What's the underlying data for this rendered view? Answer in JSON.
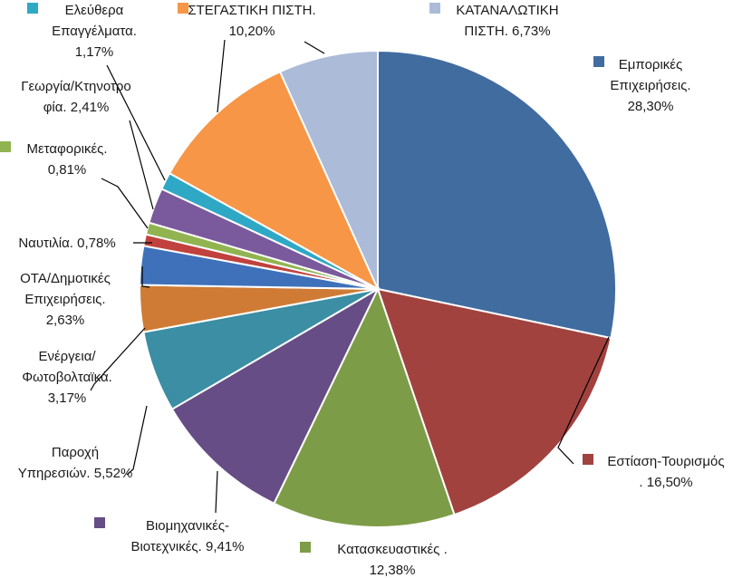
{
  "chart_data": {
    "type": "pie",
    "title": "",
    "start_angle_deg": 0,
    "direction": "clockwise",
    "slices": [
      {
        "label_lines": [
          "Εμπορικές",
          "Επιχειρήσεις.",
          "28,30%"
        ],
        "value": 28.3,
        "color": "#416c9f"
      },
      {
        "label_lines": [
          "Εστίαση-Τουρισμός",
          ". 16,50%"
        ],
        "value": 16.5,
        "color": "#a1423f"
      },
      {
        "label_lines": [
          "Κατασκευαστικές .",
          "12,38%"
        ],
        "value": 12.38,
        "color": "#7d9c47"
      },
      {
        "label_lines": [
          "Βιομηχανικές-",
          "Βιοτεχνικές. 9,41%"
        ],
        "value": 9.41,
        "color": "#664d85"
      },
      {
        "label_lines": [
          "Παροχή",
          "Υπηρεσιών. 5,52%"
        ],
        "value": 5.52,
        "color": "#3b8ea3"
      },
      {
        "label_lines": [
          "Ενέργεια/",
          "Φωτοβολταϊκά.",
          "3,17%"
        ],
        "value": 3.17,
        "color": "#cf7b35"
      },
      {
        "label_lines": [
          "ΟΤΑ/Δημοτικές",
          "Επιχειρήσεις.",
          "2,63%"
        ],
        "value": 2.63,
        "color": "#3f71bb"
      },
      {
        "label_lines": [
          "Ναυτιλία. 0,78%"
        ],
        "value": 0.78,
        "color": "#c0413e"
      },
      {
        "label_lines": [
          "Μεταφορικές.",
          "0,81%"
        ],
        "value": 0.81,
        "color": "#91b451"
      },
      {
        "label_lines": [
          "Γεωργία/Κτηνοτρο",
          "φία. 2,41%"
        ],
        "value": 2.41,
        "color": "#7a5a9c"
      },
      {
        "label_lines": [
          "Ελεύθερα",
          "Επαγγέλματα.",
          "1,17%"
        ],
        "value": 1.17,
        "color": "#2fa8c6"
      },
      {
        "label_lines": [
          "ΣΤΕΓΑΣΤΙΚΗ ΠΙΣΤΗ.",
          "10,20%"
        ],
        "value": 10.2,
        "color": "#f79646"
      },
      {
        "label_lines": [
          "ΚΑΤΑΝΑΛΩΤΙΚΗ",
          "ΠΙΣΤΗ. 6,73%"
        ],
        "value": 6.73,
        "color": "#abbbd8"
      }
    ]
  }
}
